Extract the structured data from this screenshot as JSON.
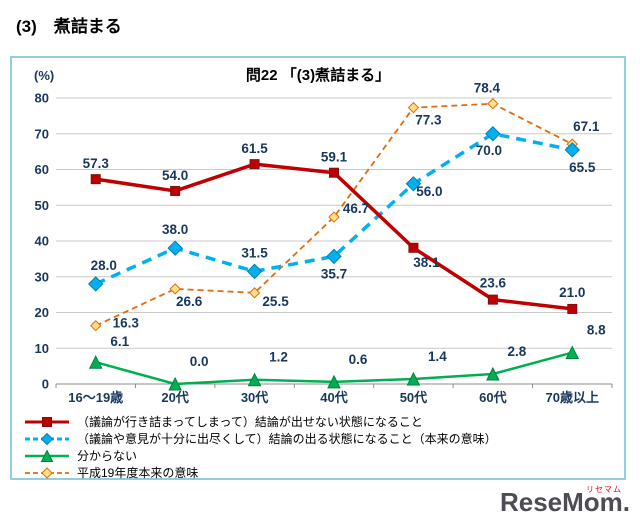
{
  "page": {
    "heading": "(3)　煮詰まる"
  },
  "chart_data": {
    "type": "line",
    "title": "問22 「(3)煮詰まる」",
    "y_unit_label": "(%)",
    "ylim": [
      0,
      80
    ],
    "yticks": [
      0,
      10,
      20,
      30,
      40,
      50,
      60,
      70,
      80
    ],
    "grid": true,
    "legend_position": "bottom",
    "categories": [
      "16〜19歳",
      "20代",
      "30代",
      "40代",
      "50代",
      "60代",
      "70歳以上"
    ],
    "series": [
      {
        "name": "（議論が行き詰まってしまって）結論が出せない状態になること",
        "values": [
          57.3,
          54.0,
          61.5,
          59.1,
          38.1,
          23.6,
          21.0
        ],
        "color": "#C00000",
        "line_style": "solid",
        "dash_pattern": "",
        "line_width": 3.5,
        "marker": "square",
        "marker_fill": "#C00000",
        "marker_stroke": "#7F1010",
        "marker_size": 4.5
      },
      {
        "name": "（議論や意見が十分に出尽くして）結論の出る状態になること（本来の意味）",
        "values": [
          28.0,
          38.0,
          31.5,
          35.7,
          56.0,
          70.0,
          65.5
        ],
        "color": "#00B0F0",
        "line_style": "dashed",
        "dash_pattern": "10,7",
        "line_width": 3.5,
        "marker": "diamond",
        "marker_fill": "#00B0F0",
        "marker_stroke": "#0080B0",
        "marker_size": 7
      },
      {
        "name": "分からない",
        "values": [
          6.1,
          0.0,
          1.2,
          0.6,
          1.4,
          2.8,
          8.8
        ],
        "color": "#00B050",
        "line_style": "solid",
        "dash_pattern": "",
        "line_width": 2.5,
        "marker": "triangle",
        "marker_fill": "#00B050",
        "marker_stroke": "#008040",
        "marker_size": 6
      },
      {
        "name": "平成19年度本来の意味",
        "values": [
          16.3,
          26.6,
          25.5,
          46.7,
          77.3,
          78.4,
          67.1
        ],
        "color": "#E36C0A",
        "line_style": "dashed",
        "dash_pattern": "6,4",
        "line_width": 1.8,
        "marker": "diamond",
        "marker_fill": "#FFE08A",
        "marker_stroke": "#E36C0A",
        "marker_size": 5
      }
    ]
  },
  "colors": {
    "frame_border": "#92CDDC",
    "grid_line": "#C9C9C9",
    "axis_line": "#8C8C8C",
    "axis_text": "#17375E",
    "data_label_text": "#17375E",
    "legend_text": "#000000"
  },
  "watermark": {
    "main": "ReseMom.",
    "sub": "リセマム"
  }
}
